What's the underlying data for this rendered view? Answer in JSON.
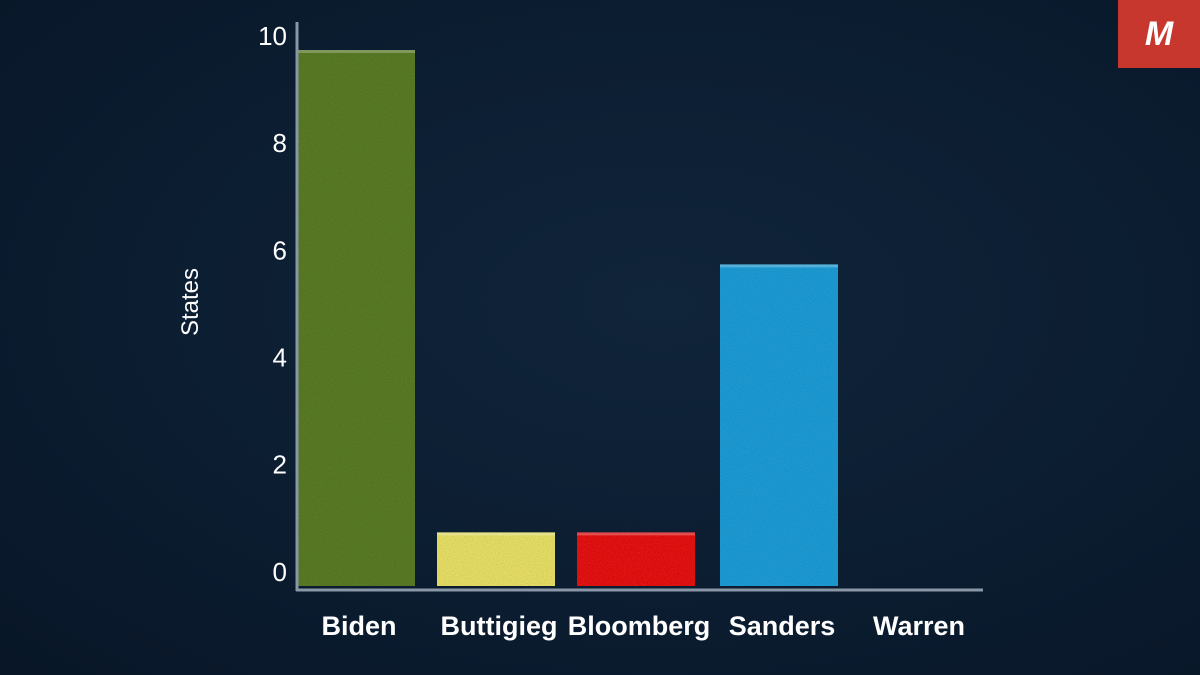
{
  "logo": {
    "letter": "M",
    "color": "#c8372d"
  },
  "chart_data": {
    "type": "bar",
    "categories": [
      "Biden",
      "Buttigieg",
      "Bloomberg",
      "Sanders",
      "Warren"
    ],
    "values": [
      10,
      1,
      1,
      6,
      0
    ],
    "colors": [
      "#5e8128",
      "#f2ea6a",
      "#f01414",
      "#1ea3e0",
      "#1ea3e0"
    ],
    "ylabel": "States",
    "xlabel": "",
    "ylim": [
      0,
      10
    ],
    "yticks": [
      0,
      2,
      4,
      6,
      8,
      10
    ],
    "grid": false,
    "background": "#0c1d31"
  }
}
